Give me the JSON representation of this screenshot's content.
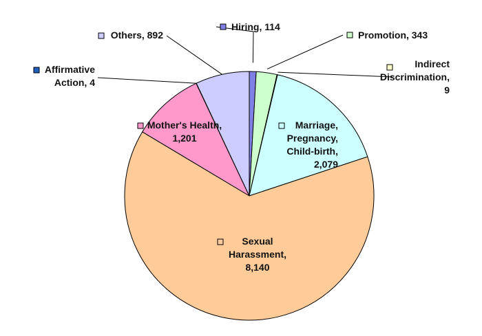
{
  "chart_data": {
    "type": "pie",
    "title": "",
    "slices": [
      {
        "name": "Hiring",
        "value": 114,
        "label": "Hiring, 114",
        "color": "#7f7fe6"
      },
      {
        "name": "Promotion",
        "value": 343,
        "label": "Promotion, 343",
        "color": "#ccffcc"
      },
      {
        "name": "Indirect Discrimination",
        "value": 9,
        "label": "Indirect Discrimination, 9",
        "color": "#ffffcc"
      },
      {
        "name": "Marriage, Pregnancy, Child-birth",
        "value": 2079,
        "label": "Marriage, Pregnancy, Child-birth, 2,079",
        "color": "#ccffff"
      },
      {
        "name": "Sexual Harassment",
        "value": 8140,
        "label": "Sexual Harassment, 8,140",
        "color": "#ffcc99"
      },
      {
        "name": "Mother's Health",
        "value": 1201,
        "label": "Mother's Health, 1,201",
        "color": "#ff99cc"
      },
      {
        "name": "Affirmative Action",
        "value": 4,
        "label": "Affirmative Action, 4",
        "color": "#1f5fbf"
      },
      {
        "name": "Others",
        "value": 892,
        "label": "Others, 892",
        "color": "#ccccff"
      }
    ]
  }
}
